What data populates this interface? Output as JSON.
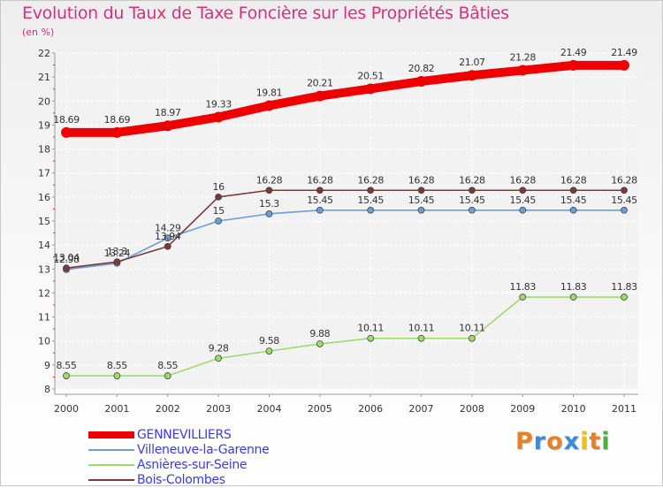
{
  "header": {
    "title": "Evolution du Taux de Taxe Foncière sur les Propriétés Bâties",
    "subtitle": "(en %)"
  },
  "logo": {
    "text": "Proxiti",
    "colors": [
      "#e8802a",
      "#3a8ad8",
      "#e8802a",
      "#3a8ad8",
      "#e8c020",
      "#e8802a",
      "#4ab040"
    ]
  },
  "chart_data": {
    "type": "line",
    "title": "Evolution du Taux de Taxe Foncière sur les Propriétés Bâties",
    "ylabel": "(en %)",
    "xlabel": "",
    "x": [
      "2000",
      "2001",
      "2002",
      "2003",
      "2004",
      "2005",
      "2006",
      "2007",
      "2008",
      "2009",
      "2010",
      "2011"
    ],
    "ylim": [
      8,
      22
    ],
    "yticks": [
      "8",
      "9",
      "10",
      "11",
      "12",
      "13",
      "14",
      "15",
      "16",
      "17",
      "18",
      "19",
      "20",
      "21",
      "22"
    ],
    "grid": true,
    "legend_position": "bottom-left",
    "series": [
      {
        "name": "GENNEVILLIERS",
        "color": "#ee0000",
        "values": [
          18.69,
          18.69,
          18.97,
          19.33,
          19.81,
          20.21,
          20.51,
          20.82,
          21.07,
          21.28,
          21.49,
          21.49
        ],
        "labels": [
          "18.69",
          "18.69",
          "18.97",
          "19.33",
          "19.81",
          "20.21",
          "20.51",
          "20.82",
          "21.07",
          "21.28",
          "21.49",
          "21.49"
        ]
      },
      {
        "name": "Villeneuve-la-Garenne",
        "color": "#6a9ed6",
        "values": [
          12.98,
          13.24,
          14.29,
          15,
          15.3,
          15.45,
          15.45,
          15.45,
          15.45,
          15.45,
          15.45,
          15.45
        ],
        "labels": [
          "12.98",
          "13.24",
          "14.29",
          "15",
          "15.3",
          "15.45",
          "15.45",
          "15.45",
          "15.45",
          "15.45",
          "15.45",
          "15.45"
        ]
      },
      {
        "name": "Asnières-sur-Seine",
        "color": "#9edc6a",
        "values": [
          8.55,
          8.55,
          8.55,
          9.28,
          9.58,
          9.88,
          10.11,
          10.11,
          10.11,
          11.83,
          11.83,
          11.83
        ],
        "labels": [
          "8.55",
          "8.55",
          "8.55",
          "9.28",
          "9.58",
          "9.88",
          "10.11",
          "10.11",
          "10.11",
          "11.83",
          "11.83",
          "11.83"
        ]
      },
      {
        "name": "Bois-Colombes",
        "color": "#7a3a3a",
        "values": [
          13.04,
          13.3,
          13.94,
          16,
          16.28,
          16.28,
          16.28,
          16.28,
          16.28,
          16.28,
          16.28,
          16.28
        ],
        "labels": [
          "13.04",
          "13.3",
          "13.94",
          "16",
          "16.28",
          "16.28",
          "16.28",
          "16.28",
          "16.28",
          "16.28",
          "16.28",
          "16.28"
        ]
      }
    ]
  }
}
